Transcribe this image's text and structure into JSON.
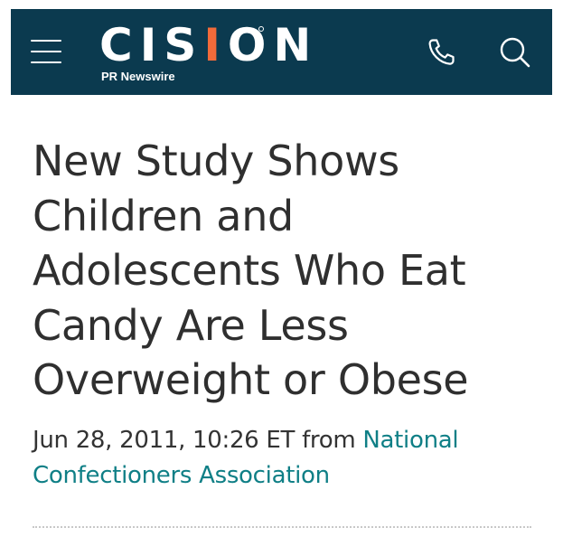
{
  "header": {
    "logo": {
      "wordmark_left": "CIS",
      "wordmark_accent": "I",
      "wordmark_right": "ON",
      "subtitle": "PR Newswire"
    },
    "icons": {
      "menu": "hamburger-menu-icon",
      "phone": "phone-icon",
      "search": "search-icon"
    },
    "colors": {
      "background": "#0b3a4f",
      "logo_accent": "#f26b3a"
    }
  },
  "article": {
    "headline": "New Study Shows Children and Adolescents Who Eat Candy Are Less Overweight or Obese",
    "dateline": {
      "date": "Jun 28, 2011, 10:26 ET",
      "from_label": "from",
      "source": "National Confectioners Association",
      "source_color": "#0f7f86"
    }
  }
}
